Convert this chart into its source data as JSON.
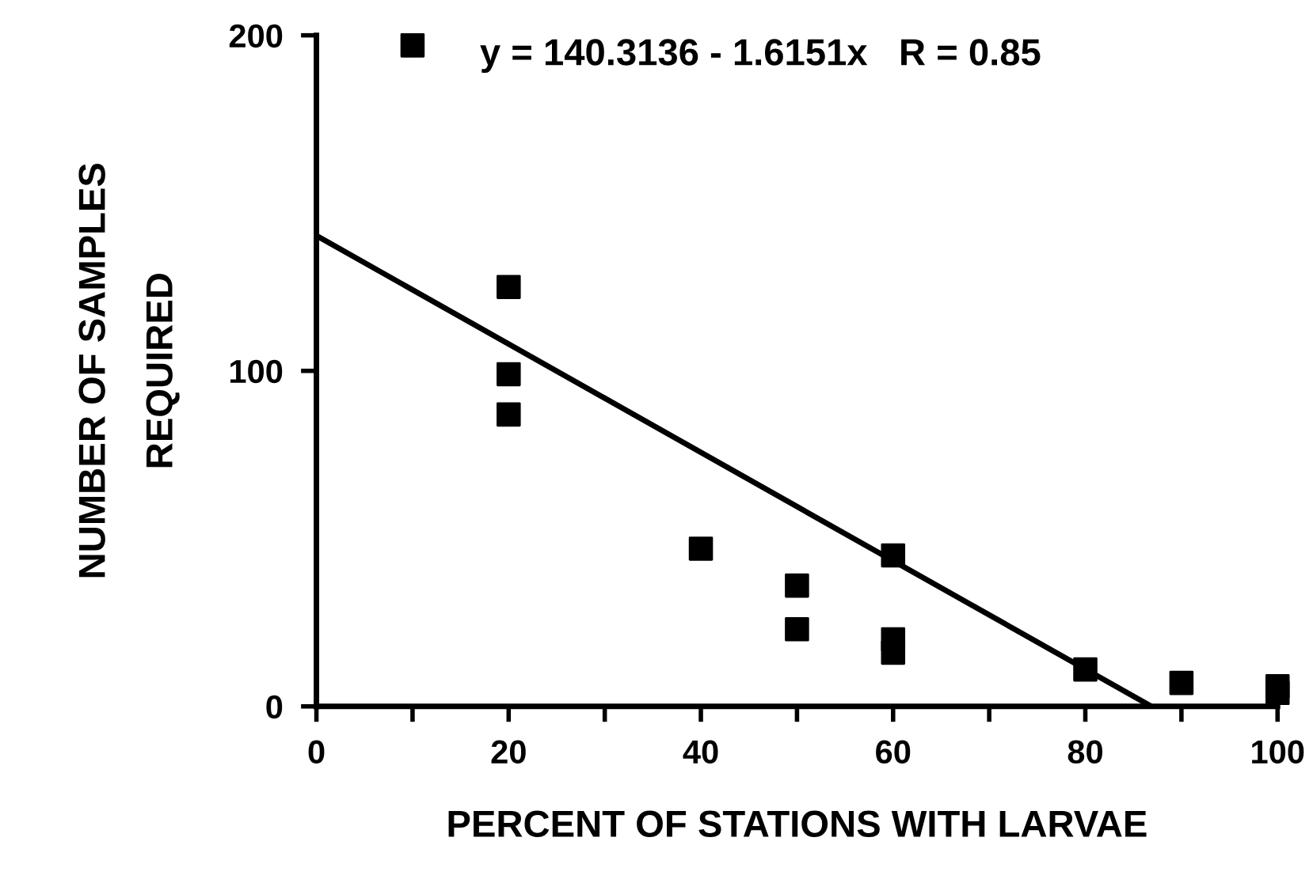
{
  "chart_data": {
    "type": "scatter",
    "xlabel": "PERCENT OF STATIONS WITH LARVAE",
    "ylabel": "NUMBER OF SAMPLES\nREQUIRED",
    "annotations": [
      "y = 140.3136 - 1.6151x   R = 0.85"
    ],
    "xlim": [
      0,
      100
    ],
    "ylim": [
      0,
      200
    ],
    "xticks": [
      0,
      {
        "value": 10,
        "label": null
      },
      20,
      {
        "value": 30,
        "label": null
      },
      40,
      {
        "value": 50,
        "label": null
      },
      60,
      {
        "value": 70,
        "label": null
      },
      80,
      {
        "value": 90,
        "label": null
      },
      100
    ],
    "yticks": [
      0,
      100,
      200
    ],
    "grid": false,
    "series": [
      {
        "marker": "square",
        "color": "#000000",
        "x": [
          10,
          20,
          20,
          20,
          40,
          50,
          50,
          60,
          60,
          60,
          80,
          90,
          100,
          100
        ],
        "values": [
          197,
          125,
          99,
          87,
          47,
          36,
          23,
          45,
          20,
          16,
          11,
          7,
          6,
          4
        ]
      },
      {
        "type": "line",
        "color": "#000000",
        "x": [
          0,
          86.88
        ],
        "values": [
          140.3,
          0
        ],
        "line_style": "solid"
      }
    ]
  }
}
